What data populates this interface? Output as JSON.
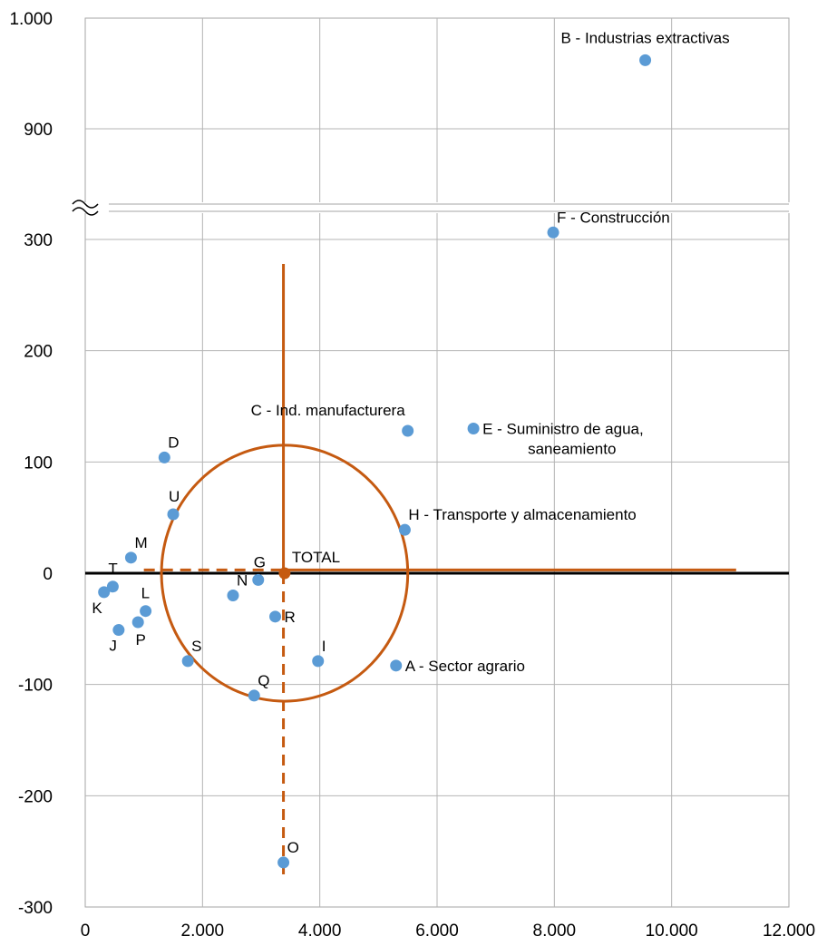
{
  "chart_data": {
    "type": "scatter",
    "title": "",
    "xlabel": "",
    "ylabel": "",
    "xlim": [
      0,
      12000
    ],
    "ylim": [
      -300,
      1000
    ],
    "grid": true,
    "y_axis_break": {
      "between": [
        300,
        900
      ],
      "symbol": "≈"
    },
    "x_ticks": [
      {
        "v": 0,
        "label": "0"
      },
      {
        "v": 2000,
        "label": "2.000"
      },
      {
        "v": 4000,
        "label": "4.000"
      },
      {
        "v": 6000,
        "label": "6.000"
      },
      {
        "v": 8000,
        "label": "8.000"
      },
      {
        "v": 10000,
        "label": "10.000"
      },
      {
        "v": 12000,
        "label": "12.000"
      }
    ],
    "y_ticks": [
      {
        "v": -300,
        "label": "-300"
      },
      {
        "v": -200,
        "label": "-200"
      },
      {
        "v": -100,
        "label": "-100"
      },
      {
        "v": 0,
        "label": "0"
      },
      {
        "v": 100,
        "label": "100"
      },
      {
        "v": 200,
        "label": "200"
      },
      {
        "v": 300,
        "label": "300"
      },
      {
        "v": 900,
        "label": "900"
      },
      {
        "v": 1000,
        "label": "1.000"
      }
    ],
    "series": [
      {
        "color": "#5b9bd5",
        "points": [
          {
            "label": "A - Sector agrario",
            "x": 5300,
            "y": -83,
            "anchor": "right"
          },
          {
            "label": "B - Industrias extractivas",
            "x": 9550,
            "y": 962,
            "anchor": "above"
          },
          {
            "label": "C - Ind. manufacturera",
            "x": 5500,
            "y": 128,
            "anchor": "above-left"
          },
          {
            "label": "D",
            "x": 1350,
            "y": 104,
            "anchor": "upper-right"
          },
          {
            "label": "E - Suministro de agua,",
            "label2": "saneamiento",
            "x": 6620,
            "y": 130,
            "anchor": "right"
          },
          {
            "label": "F - Construcción",
            "x": 7980,
            "y": 338,
            "anchor": "upper-right"
          },
          {
            "label": "G",
            "x": 2950,
            "y": -6,
            "anchor": "up"
          },
          {
            "label": "H - Transporte y almacenamiento",
            "x": 5450,
            "y": 39,
            "anchor": "upper-right"
          },
          {
            "label": "I",
            "x": 3970,
            "y": -79,
            "anchor": "upper-right"
          },
          {
            "label": "J",
            "x": 570,
            "y": -51,
            "anchor": "lower-left"
          },
          {
            "label": "K",
            "x": 320,
            "y": -17,
            "anchor": "lower-left"
          },
          {
            "label": "L",
            "x": 1030,
            "y": -34,
            "anchor": "up"
          },
          {
            "label": "M",
            "x": 780,
            "y": 14,
            "anchor": "upper-right"
          },
          {
            "label": "N",
            "x": 2520,
            "y": -20,
            "anchor": "upper-right"
          },
          {
            "label": "O",
            "x": 3380,
            "y": -260,
            "anchor": "upper-right"
          },
          {
            "label": "P",
            "x": 900,
            "y": -44,
            "anchor": "below"
          },
          {
            "label": "Q",
            "x": 2880,
            "y": -110,
            "anchor": "upper-right"
          },
          {
            "label": "R",
            "x": 3240,
            "y": -39,
            "anchor": "right"
          },
          {
            "label": "S",
            "x": 1750,
            "y": -79,
            "anchor": "upper-right"
          },
          {
            "label": "T",
            "x": 470,
            "y": -12,
            "anchor": "up"
          },
          {
            "label": "U",
            "x": 1500,
            "y": 53,
            "anchor": "up"
          }
        ]
      }
    ],
    "total": {
      "label": "TOTAL",
      "x": 3400,
      "y": 0,
      "color": "#c55a11"
    },
    "circle": {
      "cx": 3400,
      "cy": 0,
      "rx": 2100,
      "ry": 115,
      "color": "#c55a11"
    },
    "reference_lines": {
      "color": "#c55a11",
      "vertical_solid": {
        "x": 3380,
        "y1": 0,
        "y2": 278
      },
      "vertical_dashed": {
        "x": 3380,
        "y1": 0,
        "y2": -272
      },
      "horizontal_solid": {
        "y": 3,
        "x1": 3400,
        "x2": 11100
      },
      "horizontal_dashed": {
        "y": 3,
        "x1": 1000,
        "x2": 3400
      }
    }
  }
}
